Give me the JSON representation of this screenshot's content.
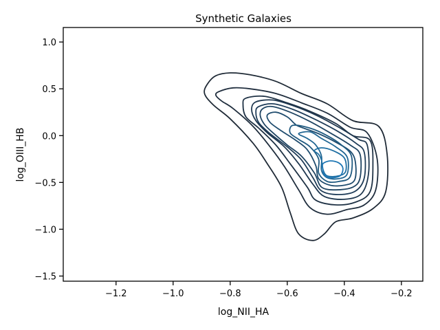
{
  "chart_data": {
    "type": "contour",
    "title": "Synthetic Galaxies",
    "xlabel": "log_NII_HA",
    "ylabel": "log_OIII_HB",
    "xlim": [
      -1.385,
      -0.125
    ],
    "ylim": [
      -1.555,
      1.155
    ],
    "xticks": [
      -1.2,
      -1.0,
      -0.8,
      -0.6,
      -0.4,
      -0.2
    ],
    "yticks": [
      1.0,
      0.5,
      0.0,
      -0.5,
      -1.0,
      -1.5
    ],
    "xtick_labels": [
      "−1.2",
      "−1.0",
      "−0.8",
      "−0.6",
      "−0.4",
      "−0.2"
    ],
    "ytick_labels": [
      "1.0",
      "0.5",
      "0.0",
      "−0.5",
      "−1.0",
      "−1.5"
    ],
    "grid": false,
    "legend": false,
    "levels": [
      {
        "color": "#1f2a36",
        "points": [
          [
            -0.88,
            0.55
          ],
          [
            -0.85,
            0.64
          ],
          [
            -0.8,
            0.67
          ],
          [
            -0.73,
            0.65
          ],
          [
            -0.64,
            0.58
          ],
          [
            -0.55,
            0.45
          ],
          [
            -0.46,
            0.34
          ],
          [
            -0.37,
            0.16
          ],
          [
            -0.28,
            0.1
          ],
          [
            -0.25,
            -0.2
          ],
          [
            -0.255,
            -0.6
          ],
          [
            -0.3,
            -0.78
          ],
          [
            -0.37,
            -0.88
          ],
          [
            -0.43,
            -0.92
          ],
          [
            -0.47,
            -1.05
          ],
          [
            -0.51,
            -1.12
          ],
          [
            -0.56,
            -1.05
          ],
          [
            -0.59,
            -0.82
          ],
          [
            -0.62,
            -0.55
          ],
          [
            -0.67,
            -0.3
          ],
          [
            -0.72,
            -0.08
          ],
          [
            -0.8,
            0.18
          ],
          [
            -0.86,
            0.33
          ],
          [
            -0.89,
            0.45
          ]
        ]
      },
      {
        "color": "#1f2d3d",
        "points": [
          [
            -0.84,
            0.47
          ],
          [
            -0.79,
            0.51
          ],
          [
            -0.73,
            0.5
          ],
          [
            -0.64,
            0.45
          ],
          [
            -0.55,
            0.35
          ],
          [
            -0.46,
            0.24
          ],
          [
            -0.38,
            0.09
          ],
          [
            -0.32,
            0.03
          ],
          [
            -0.285,
            -0.25
          ],
          [
            -0.29,
            -0.58
          ],
          [
            -0.33,
            -0.74
          ],
          [
            -0.39,
            -0.79
          ],
          [
            -0.46,
            -0.84
          ],
          [
            -0.52,
            -0.77
          ],
          [
            -0.56,
            -0.58
          ],
          [
            -0.61,
            -0.33
          ],
          [
            -0.66,
            -0.12
          ],
          [
            -0.72,
            0.1
          ],
          [
            -0.79,
            0.29
          ],
          [
            -0.83,
            0.37
          ],
          [
            -0.85,
            0.43
          ]
        ]
      },
      {
        "color": "#1f3245",
        "points": [
          [
            -0.745,
            0.4
          ],
          [
            -0.68,
            0.42
          ],
          [
            -0.6,
            0.35
          ],
          [
            -0.52,
            0.26
          ],
          [
            -0.43,
            0.13
          ],
          [
            -0.37,
            0.0
          ],
          [
            -0.31,
            -0.05
          ],
          [
            -0.3,
            -0.32
          ],
          [
            -0.31,
            -0.6
          ],
          [
            -0.36,
            -0.71
          ],
          [
            -0.43,
            -0.74
          ],
          [
            -0.5,
            -0.69
          ],
          [
            -0.53,
            -0.55
          ],
          [
            -0.59,
            -0.3
          ],
          [
            -0.64,
            -0.1
          ],
          [
            -0.7,
            0.08
          ],
          [
            -0.745,
            0.2
          ],
          [
            -0.755,
            0.33
          ]
        ]
      },
      {
        "color": "#1f374f",
        "points": [
          [
            -0.71,
            0.36
          ],
          [
            -0.65,
            0.38
          ],
          [
            -0.58,
            0.32
          ],
          [
            -0.5,
            0.22
          ],
          [
            -0.42,
            0.09
          ],
          [
            -0.35,
            -0.04
          ],
          [
            -0.32,
            -0.1
          ],
          [
            -0.315,
            -0.4
          ],
          [
            -0.34,
            -0.62
          ],
          [
            -0.4,
            -0.68
          ],
          [
            -0.47,
            -0.65
          ],
          [
            -0.51,
            -0.52
          ],
          [
            -0.56,
            -0.3
          ],
          [
            -0.61,
            -0.12
          ],
          [
            -0.67,
            0.03
          ],
          [
            -0.71,
            0.16
          ],
          [
            -0.725,
            0.28
          ]
        ]
      },
      {
        "color": "#1f3c58",
        "points": [
          [
            -0.7,
            0.31
          ],
          [
            -0.65,
            0.34
          ],
          [
            -0.58,
            0.28
          ],
          [
            -0.5,
            0.17
          ],
          [
            -0.42,
            0.04
          ],
          [
            -0.36,
            -0.08
          ],
          [
            -0.33,
            -0.18
          ],
          [
            -0.33,
            -0.45
          ],
          [
            -0.36,
            -0.59
          ],
          [
            -0.42,
            -0.63
          ],
          [
            -0.48,
            -0.59
          ],
          [
            -0.51,
            -0.45
          ],
          [
            -0.55,
            -0.26
          ],
          [
            -0.6,
            -0.12
          ],
          [
            -0.66,
            0.02
          ],
          [
            -0.7,
            0.14
          ],
          [
            -0.71,
            0.25
          ]
        ]
      },
      {
        "color": "#1f4462",
        "points": [
          [
            -0.685,
            0.29
          ],
          [
            -0.65,
            0.31
          ],
          [
            -0.59,
            0.25
          ],
          [
            -0.52,
            0.15
          ],
          [
            -0.45,
            0.03
          ],
          [
            -0.38,
            -0.1
          ],
          [
            -0.345,
            -0.2
          ],
          [
            -0.345,
            -0.45
          ],
          [
            -0.37,
            -0.55
          ],
          [
            -0.43,
            -0.58
          ],
          [
            -0.48,
            -0.55
          ],
          [
            -0.505,
            -0.4
          ],
          [
            -0.55,
            -0.22
          ],
          [
            -0.6,
            -0.1
          ],
          [
            -0.65,
            0.03
          ],
          [
            -0.68,
            0.12
          ],
          [
            -0.695,
            0.22
          ]
        ]
      },
      {
        "color": "#1f4c6e",
        "points": [
          [
            -0.67,
            0.22
          ],
          [
            -0.64,
            0.25
          ],
          [
            -0.6,
            0.2
          ],
          [
            -0.575,
            0.13
          ],
          [
            -0.56,
            0.1
          ],
          [
            -0.49,
            0.02
          ],
          [
            -0.43,
            -0.07
          ],
          [
            -0.375,
            -0.18
          ],
          [
            -0.36,
            -0.32
          ],
          [
            -0.365,
            -0.48
          ],
          [
            -0.4,
            -0.53
          ],
          [
            -0.45,
            -0.53
          ],
          [
            -0.49,
            -0.46
          ],
          [
            -0.5,
            -0.32
          ],
          [
            -0.53,
            -0.15
          ],
          [
            -0.57,
            -0.05
          ],
          [
            -0.62,
            0.05
          ],
          [
            -0.66,
            0.14
          ]
        ]
      },
      {
        "color": "#1f5a80",
        "points": [
          [
            -0.58,
            0.11
          ],
          [
            -0.52,
            0.08
          ],
          [
            -0.46,
            0.0
          ],
          [
            -0.41,
            -0.1
          ],
          [
            -0.375,
            -0.22
          ],
          [
            -0.38,
            -0.44
          ],
          [
            -0.42,
            -0.49
          ],
          [
            -0.46,
            -0.49
          ],
          [
            -0.49,
            -0.4
          ],
          [
            -0.49,
            -0.25
          ],
          [
            -0.52,
            -0.12
          ],
          [
            -0.56,
            -0.04
          ],
          [
            -0.59,
            0.03
          ]
        ]
      },
      {
        "color": "#1f6592",
        "points": [
          [
            -0.56,
            0.02
          ],
          [
            -0.52,
            0.04
          ],
          [
            -0.48,
            -0.03
          ],
          [
            -0.43,
            -0.12
          ],
          [
            -0.39,
            -0.23
          ],
          [
            -0.39,
            -0.41
          ],
          [
            -0.42,
            -0.46
          ],
          [
            -0.46,
            -0.45
          ],
          [
            -0.48,
            -0.37
          ],
          [
            -0.48,
            -0.22
          ],
          [
            -0.5,
            -0.1
          ],
          [
            -0.53,
            -0.03
          ]
        ]
      },
      {
        "color": "#1f6fa2",
        "points": [
          [
            -0.505,
            -0.16
          ],
          [
            -0.48,
            -0.13
          ],
          [
            -0.44,
            -0.16
          ],
          [
            -0.4,
            -0.24
          ],
          [
            -0.395,
            -0.38
          ],
          [
            -0.42,
            -0.43
          ],
          [
            -0.46,
            -0.43
          ],
          [
            -0.475,
            -0.36
          ],
          [
            -0.48,
            -0.26
          ],
          [
            -0.49,
            -0.2
          ]
        ]
      },
      {
        "color": "#1f77b4",
        "points": [
          [
            -0.475,
            -0.3
          ],
          [
            -0.45,
            -0.27
          ],
          [
            -0.42,
            -0.29
          ],
          [
            -0.405,
            -0.35
          ],
          [
            -0.415,
            -0.43
          ],
          [
            -0.45,
            -0.45
          ],
          [
            -0.47,
            -0.42
          ],
          [
            -0.475,
            -0.36
          ]
        ]
      }
    ]
  }
}
